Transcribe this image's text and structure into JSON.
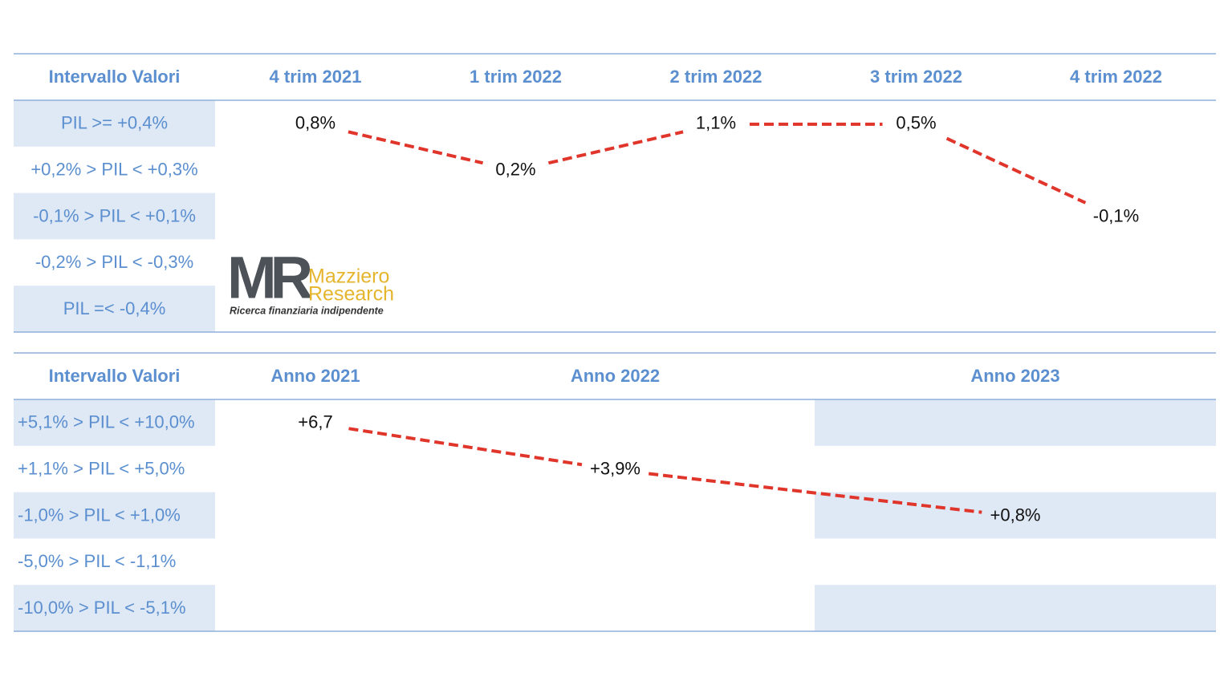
{
  "tables": [
    {
      "header": [
        "Intervallo Valori",
        "4 trim 2021",
        "1 trim 2022",
        "2 trim 2022",
        "3 trim 2022",
        "4 trim 2022"
      ],
      "rows": [
        {
          "range": "PIL >= +0,4%",
          "cells": [
            "0,8%",
            null,
            "1,1%",
            "0,5%",
            null
          ]
        },
        {
          "range": "+0,2% > PIL < +0,3%",
          "cells": [
            null,
            "0,2%",
            null,
            null,
            null
          ]
        },
        {
          "range": "-0,1% > PIL < +0,1%",
          "cells": [
            null,
            null,
            null,
            null,
            "-0,1%"
          ]
        },
        {
          "range": "-0,2% > PIL < -0,3%",
          "cells": [
            null,
            null,
            null,
            null,
            null
          ]
        },
        {
          "range": "PIL =< -0,4%",
          "cells": [
            null,
            null,
            null,
            null,
            null
          ]
        }
      ]
    },
    {
      "header": [
        "Intervallo Valori",
        "Anno 2021",
        "Anno 2022",
        "Anno 2023"
      ],
      "rows": [
        {
          "range": "+5,1% > PIL < +10,0%",
          "cells": [
            "+6,7",
            null,
            null
          ]
        },
        {
          "range": "+1,1% > PIL < +5,0%",
          "cells": [
            null,
            "+3,9%",
            null
          ]
        },
        {
          "range": "-1,0% > PIL < +1,0%",
          "cells": [
            null,
            null,
            "+0,8%"
          ]
        },
        {
          "range": "-5,0% > PIL < -1,1%",
          "cells": [
            null,
            null,
            null
          ]
        },
        {
          "range": "-10,0% > PIL < -5,1%",
          "cells": [
            null,
            null,
            null
          ]
        }
      ]
    }
  ],
  "logo": {
    "monogram": "MR",
    "name_line1": "Mazziero",
    "name_line2": "Research",
    "tagline": "Ricerca finanziaria indipendente"
  }
}
